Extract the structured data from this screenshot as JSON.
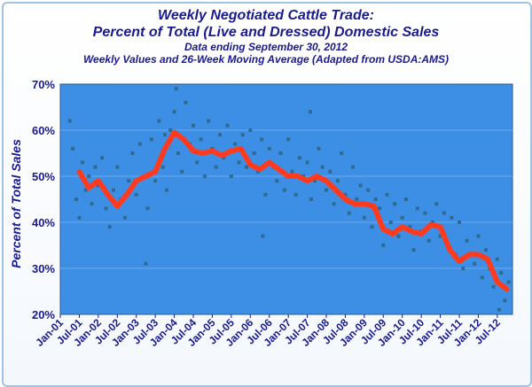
{
  "chart_data": {
    "type": "scatter",
    "title": "Weekly Negotiated Cattle Trade:",
    "title2": "Percent of Total (Live and Dressed) Domestic Sales",
    "subtitle1": "Data ending September 30, 2012",
    "subtitle2": "Weekly Values and 26-Week Moving Average (Adapted from USDA:AMS)",
    "ylabel": "Percent of Total Sales",
    "xlabel": "",
    "ylim": [
      20,
      70
    ],
    "y_ticks": [
      "70%",
      "60%",
      "50%",
      "40%",
      "30%",
      "20%"
    ],
    "x_ticks": [
      "Jan-01",
      "Jul-01",
      "Jan-02",
      "Jul-02",
      "Jan-03",
      "Jul-03",
      "Jan-04",
      "Jul-04",
      "Jan-05",
      "Jul-05",
      "Jan-06",
      "Jul-06",
      "Jan-07",
      "Jul-07",
      "Jan-08",
      "Jul-08",
      "Jan-09",
      "Jul-09",
      "Jan-10",
      "Jul-10",
      "Jan-11",
      "Jul-11",
      "Jan-12",
      "Jul-12"
    ],
    "x_range": [
      2001.0,
      2012.9
    ],
    "series": [
      {
        "name": "Weekly values",
        "style": "points",
        "color": "#2f6a90",
        "x": [
          2001.25,
          2001.33,
          2001.42,
          2001.5,
          2001.58,
          2001.67,
          2001.75,
          2001.83,
          2001.92,
          2002.0,
          2002.1,
          2002.2,
          2002.3,
          2002.4,
          2002.5,
          2002.6,
          2002.7,
          2002.8,
          2002.9,
          2003.0,
          2003.1,
          2003.2,
          2003.3,
          2003.4,
          2003.5,
          2003.6,
          2003.7,
          2003.8,
          2003.9,
          2004.0,
          2004.1,
          2004.2,
          2004.3,
          2004.4,
          2004.5,
          2004.6,
          2004.7,
          2004.8,
          2004.9,
          2005.0,
          2005.1,
          2005.2,
          2005.3,
          2005.4,
          2005.5,
          2005.6,
          2005.7,
          2005.8,
          2005.9,
          2006.0,
          2006.1,
          2006.2,
          2006.3,
          2006.4,
          2006.5,
          2006.6,
          2006.7,
          2006.8,
          2006.9,
          2007.0,
          2007.1,
          2007.2,
          2007.3,
          2007.4,
          2007.5,
          2007.6,
          2007.7,
          2007.8,
          2007.9,
          2008.0,
          2008.1,
          2008.2,
          2008.3,
          2008.4,
          2008.5,
          2008.6,
          2008.7,
          2008.8,
          2008.9,
          2009.0,
          2009.1,
          2009.2,
          2009.3,
          2009.4,
          2009.5,
          2009.6,
          2009.7,
          2009.8,
          2009.9,
          2010.0,
          2010.1,
          2010.2,
          2010.3,
          2010.4,
          2010.5,
          2010.6,
          2010.7,
          2010.8,
          2010.9,
          2011.0,
          2011.1,
          2011.2,
          2011.3,
          2011.4,
          2011.5,
          2011.6,
          2011.7,
          2011.8,
          2011.9,
          2012.0,
          2012.1,
          2012.2,
          2012.3,
          2012.4,
          2012.5,
          2012.6,
          2012.7,
          2012.8,
          2003.25,
          2006.33,
          2007.58,
          2003.75,
          2004.05,
          2012.55
        ],
        "y": [
          62,
          56,
          45,
          41,
          53,
          47,
          50,
          44,
          52,
          48,
          54,
          43,
          39,
          47,
          52,
          45,
          41,
          49,
          55,
          46,
          57,
          50,
          43,
          58,
          49,
          62,
          52,
          47,
          60,
          64,
          55,
          51,
          66,
          57,
          61,
          53,
          58,
          50,
          62,
          56,
          52,
          59,
          54,
          61,
          50,
          57,
          53,
          59,
          52,
          60,
          55,
          51,
          58,
          46,
          56,
          52,
          49,
          55,
          47,
          58,
          51,
          46,
          54,
          50,
          53,
          45,
          49,
          56,
          52,
          47,
          51,
          44,
          49,
          55,
          46,
          42,
          52,
          45,
          48,
          41,
          47,
          39,
          45,
          43,
          35,
          46,
          40,
          44,
          37,
          41,
          45,
          39,
          34,
          43,
          38,
          42,
          36,
          40,
          44,
          37,
          42,
          35,
          41,
          33,
          40,
          30,
          36,
          33,
          31,
          37,
          28,
          34,
          30,
          26,
          32,
          29,
          23,
          27,
          31,
          37,
          64,
          59,
          69,
          21
        ]
      },
      {
        "name": "26-Week Moving Average",
        "style": "line",
        "color": "#ff3b1f",
        "x": [
          2001.5,
          2001.75,
          2002.0,
          2002.25,
          2002.5,
          2002.75,
          2003.0,
          2003.25,
          2003.5,
          2003.75,
          2004.0,
          2004.25,
          2004.5,
          2004.75,
          2005.0,
          2005.25,
          2005.5,
          2005.75,
          2006.0,
          2006.25,
          2006.5,
          2006.75,
          2007.0,
          2007.25,
          2007.5,
          2007.75,
          2008.0,
          2008.25,
          2008.5,
          2008.75,
          2009.0,
          2009.25,
          2009.5,
          2009.75,
          2010.0,
          2010.25,
          2010.5,
          2010.75,
          2011.0,
          2011.25,
          2011.5,
          2011.75,
          2012.0,
          2012.25,
          2012.5,
          2012.75
        ],
        "y": [
          51,
          47.5,
          49,
          46,
          43.5,
          46,
          49,
          50,
          51,
          56,
          59.5,
          58,
          55.5,
          55,
          55.5,
          54.5,
          55.5,
          56,
          52.5,
          51.5,
          53,
          51.5,
          50,
          50,
          49,
          50,
          49,
          47,
          45,
          44,
          44,
          43.5,
          38.5,
          37.5,
          39,
          38,
          37.5,
          39.5,
          39,
          34,
          31.5,
          33,
          33,
          32,
          27,
          25.5
        ]
      }
    ]
  }
}
